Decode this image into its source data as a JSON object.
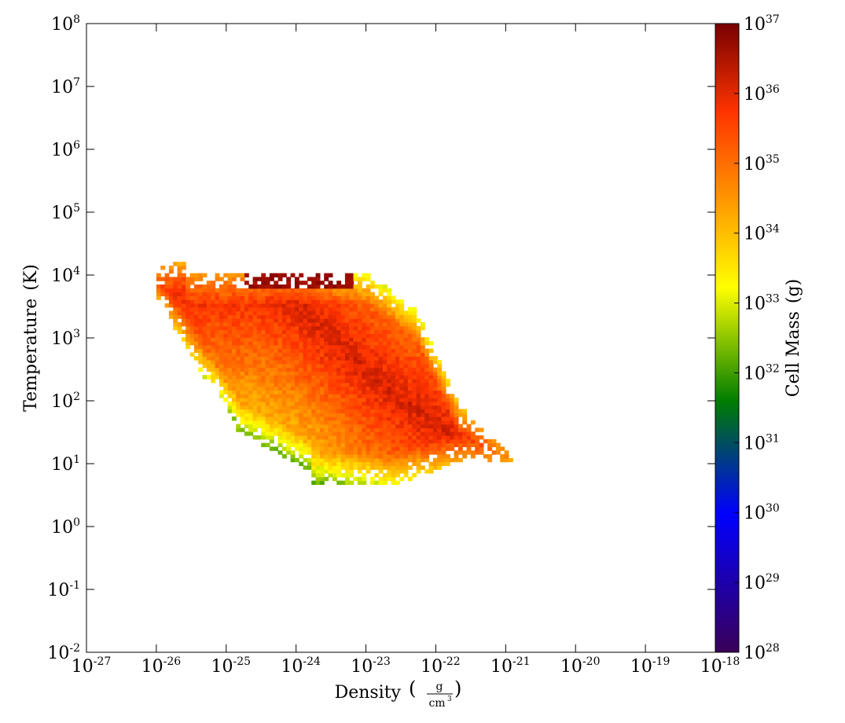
{
  "chart_data": {
    "type": "heatmap",
    "subtype": "2d-histogram phase plot",
    "x_axis": {
      "label": "Density",
      "unit_numerator": "g",
      "unit_denominator": "cm",
      "unit_denominator_exponent": "3",
      "scale": "log",
      "range": [
        1e-27,
        1e-18
      ],
      "tick_exponents": [
        "-27",
        "-26",
        "-25",
        "-24",
        "-23",
        "-22",
        "-21",
        "-20",
        "-19",
        "-18"
      ]
    },
    "y_axis": {
      "label": "Temperature",
      "unit": "(K)",
      "scale": "log",
      "range": [
        0.01,
        100000000
      ],
      "tick_exponents": [
        "-2",
        "-1",
        "0",
        "1",
        "2",
        "3",
        "4",
        "5",
        "6",
        "7",
        "8"
      ]
    },
    "colorbar": {
      "label": "Cell Mass",
      "unit": "(g)",
      "scale": "log",
      "range": [
        1e+28,
        1e+37
      ],
      "tick_exponents": [
        "28",
        "29",
        "30",
        "31",
        "32",
        "33",
        "34",
        "35",
        "36",
        "37"
      ],
      "colormap_stops": [
        "#3a0058",
        "#0000ff",
        "#007d00",
        "#ffff00",
        "#ffa500",
        "#ff3300",
        "#780000"
      ]
    },
    "ridge_log_temperature_vs_log_density": [
      [
        -25.7,
        3.9
      ],
      [
        -25.3,
        3.92
      ],
      [
        -24.9,
        3.92
      ],
      [
        -24.6,
        3.9
      ],
      [
        -24.3,
        3.75
      ],
      [
        -24.0,
        3.5
      ],
      [
        -23.7,
        3.2
      ],
      [
        -23.4,
        2.9
      ],
      [
        -23.1,
        2.55
      ],
      [
        -22.8,
        2.25
      ],
      [
        -22.5,
        2.0
      ],
      [
        -22.2,
        1.75
      ],
      [
        -21.9,
        1.45
      ],
      [
        -21.6,
        1.3
      ],
      [
        -21.2,
        1.2
      ]
    ],
    "distribution_notes": {
      "data_extent_log_density": [
        -26.0,
        -20.9
      ],
      "data_extent_log_temperature": [
        0.55,
        4.3
      ],
      "peak_log_cell_mass": 37
    },
    "base_ten": "10"
  }
}
